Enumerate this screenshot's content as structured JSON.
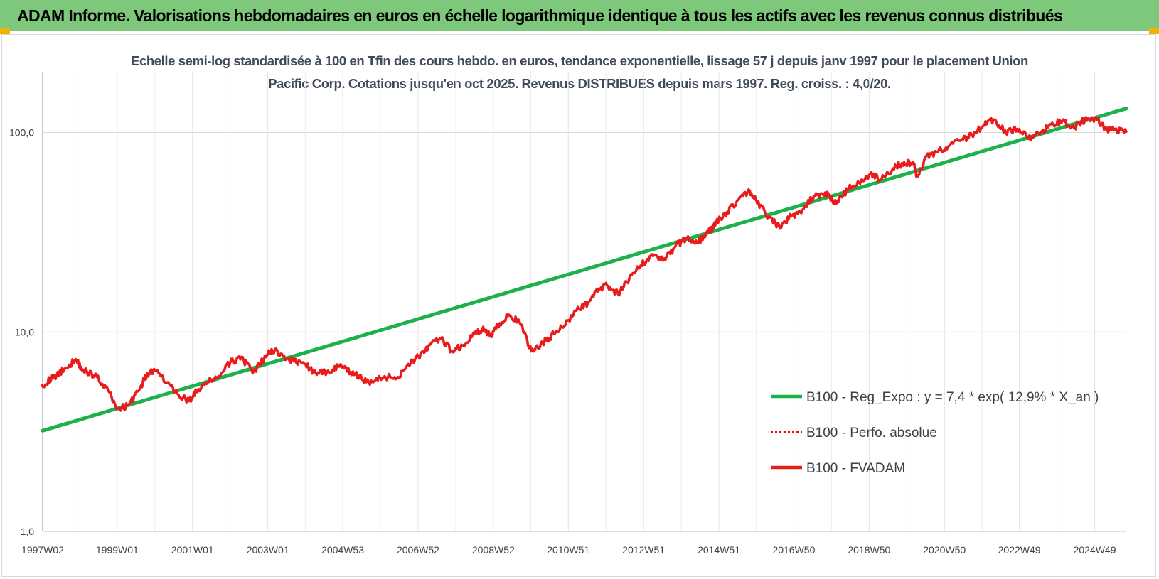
{
  "header": {
    "title": "ADAM Informe. Valorisations hebdomadaires en euros en échelle logarithmique identique à tous les actifs avec les revenus connus distribués"
  },
  "chart_data": {
    "type": "line",
    "title": "Echelle semi-log standardisée à 100 en Tfin des cours hebdo. en euros, tendance exponentielle, lissage 57 j depuis janv 1997 pour le placement Union Pacific Corp. Cotations jusqu'en oct 2025. Revenus DISTRIBUES depuis mars 1997. Reg. croiss. : 4,0/20.",
    "xlabel": "",
    "ylabel": "",
    "y_scale": "log",
    "ylim": [
      1,
      200
    ],
    "yticks": [
      1,
      10,
      100
    ],
    "ytick_labels": [
      "1,0",
      "10,0",
      "100,0"
    ],
    "xlim": [
      1997.02,
      2025.8
    ],
    "x_categories": [
      "1997W02",
      "1999W01",
      "2001W01",
      "2003W01",
      "2004W53",
      "2006W52",
      "2008W52",
      "2010W51",
      "2012W51",
      "2014W51",
      "2016W50",
      "2018W50",
      "2020W50",
      "2022W49",
      "2024W49"
    ],
    "x_category_years": [
      1997.02,
      1999.0,
      2001.0,
      2003.0,
      2004.99,
      2006.99,
      2008.99,
      2010.98,
      2012.98,
      2014.98,
      2016.97,
      2018.97,
      2020.97,
      2022.96,
      2024.96
    ],
    "grid": true,
    "legend_position": "bottom-right",
    "series": [
      {
        "name": "B100 - Reg_Expo : y = 7,4 * exp( 12,9% *  X_an )",
        "color": "#1db14b",
        "style": "solid",
        "x": [
          1997.02,
          2025.8
        ],
        "values": [
          3.2,
          132
        ]
      },
      {
        "name": "B100 - Perfo. absolue",
        "color": "#ff0000",
        "style": "dotted",
        "x": [],
        "values": []
      },
      {
        "name": "B100 - FVADAM",
        "color": "#e81c1c",
        "style": "solid",
        "x": [
          1997.0,
          1997.3,
          1997.6,
          1997.9,
          1998.1,
          1998.4,
          1998.7,
          1999.0,
          1999.3,
          1999.6,
          1999.8,
          2000.0,
          2000.3,
          2000.6,
          2000.9,
          2001.1,
          2001.4,
          2001.7,
          2002.0,
          2002.3,
          2002.6,
          2002.9,
          2003.1,
          2003.4,
          2003.7,
          2004.0,
          2004.3,
          2004.6,
          2004.9,
          2005.2,
          2005.5,
          2005.8,
          2006.1,
          2006.4,
          2006.7,
          2007.0,
          2007.3,
          2007.6,
          2007.9,
          2008.2,
          2008.5,
          2008.7,
          2008.9,
          2009.1,
          2009.4,
          2009.7,
          2010.0,
          2010.3,
          2010.6,
          2010.9,
          2011.2,
          2011.5,
          2011.8,
          2012.0,
          2012.3,
          2012.6,
          2012.9,
          2013.2,
          2013.5,
          2013.8,
          2014.1,
          2014.4,
          2014.7,
          2014.9,
          2015.2,
          2015.5,
          2015.8,
          2016.0,
          2016.3,
          2016.6,
          2016.9,
          2017.2,
          2017.5,
          2017.8,
          2018.1,
          2018.4,
          2018.7,
          2019.0,
          2019.3,
          2019.6,
          2019.9,
          2020.15,
          2020.25,
          2020.5,
          2020.8,
          2021.1,
          2021.4,
          2021.7,
          2022.0,
          2022.3,
          2022.6,
          2022.9,
          2023.2,
          2023.5,
          2023.8,
          2024.1,
          2024.4,
          2024.7,
          2025.0,
          2025.3,
          2025.5,
          2025.8
        ],
        "values": [
          5.4,
          5.9,
          6.5,
          7.3,
          6.4,
          6.1,
          5.3,
          4.1,
          4.3,
          5.2,
          6.2,
          6.4,
          5.6,
          4.9,
          4.5,
          5.0,
          5.6,
          6.0,
          7.0,
          7.5,
          6.2,
          7.3,
          8.2,
          7.6,
          7.1,
          6.9,
          6.1,
          6.4,
          6.7,
          6.3,
          5.8,
          5.6,
          6.0,
          5.8,
          6.8,
          7.5,
          8.6,
          9.2,
          8.0,
          8.6,
          9.8,
          10.4,
          9.5,
          10.8,
          12.2,
          11.0,
          8.0,
          8.8,
          9.8,
          10.8,
          12.8,
          14.0,
          16.5,
          17.2,
          15.5,
          18.5,
          21.5,
          24.5,
          22.8,
          26.5,
          29.5,
          28.0,
          31.5,
          35.0,
          40.0,
          46.0,
          51.0,
          44.0,
          38.0,
          33.0,
          38.0,
          41.0,
          48.0,
          50.0,
          44.0,
          52.0,
          56.0,
          62.0,
          58.0,
          66.0,
          71.0,
          70.0,
          60.0,
          77.0,
          80.0,
          86.0,
          91.0,
          97.0,
          108.0,
          116.0,
          100.0,
          104.0,
          93.0,
          98.0,
          110.0,
          114.0,
          106.0,
          116.0,
          118.0,
          102.0,
          104.0,
          101.0
        ]
      }
    ]
  }
}
